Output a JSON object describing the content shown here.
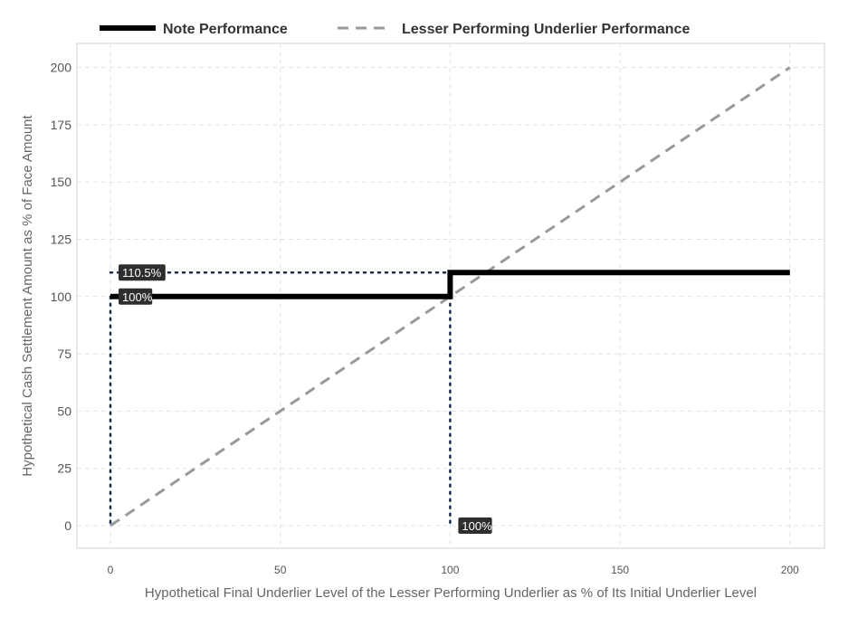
{
  "chart_data": {
    "type": "line",
    "xlabel": "Hypothetical Final Underlier Level of the Lesser Performing Underlier as % of Its Initial Underlier Level",
    "ylabel": "Hypothetical Cash Settlement Amount as % of Face Amount",
    "xlim": [
      -10,
      210
    ],
    "ylim": [
      -10,
      211
    ],
    "x_ticks": [
      0,
      50,
      100,
      150,
      200
    ],
    "y_ticks": [
      0,
      25,
      50,
      75,
      100,
      125,
      150,
      175,
      200
    ],
    "grid": true,
    "legend_position": "top",
    "series": [
      {
        "name": "Note Performance",
        "style": "solid",
        "color": "#000000",
        "points": [
          [
            0,
            100
          ],
          [
            100,
            100
          ],
          [
            100,
            110.5
          ],
          [
            200,
            110.5
          ]
        ]
      },
      {
        "name": "Lesser Performing Underlier Performance",
        "style": "dashed",
        "color": "#999999",
        "points": [
          [
            0,
            0
          ],
          [
            200,
            200
          ]
        ]
      }
    ],
    "reference_lines": [
      {
        "points": [
          [
            0,
            110.5
          ],
          [
            100,
            110.5
          ]
        ],
        "color": "#1a2a4a"
      },
      {
        "points": [
          [
            0,
            100
          ],
          [
            0,
            0
          ]
        ],
        "color": "#1a2a4a"
      },
      {
        "points": [
          [
            100,
            100
          ],
          [
            100,
            0
          ]
        ],
        "color": "#1a2a4a"
      }
    ],
    "annotations": [
      {
        "text": "110.5%",
        "x": 0,
        "y": 110.5
      },
      {
        "text": "100%",
        "x": 0,
        "y": 100
      },
      {
        "text": "100%",
        "x": 100,
        "y": 0
      }
    ]
  }
}
